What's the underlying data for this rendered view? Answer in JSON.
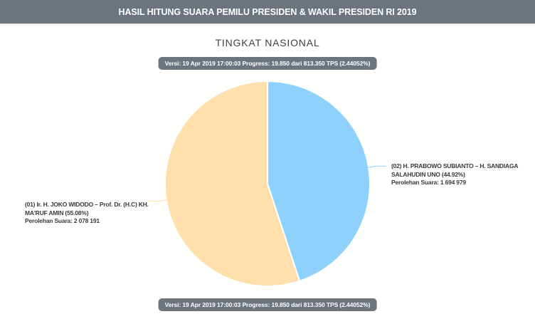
{
  "header": {
    "title": "HASIL HITUNG SUARA PEMILU PRESIDEN & WAKIL PRESIDEN RI 2019"
  },
  "page": {
    "subtitle": "TINGKAT NASIONAL",
    "version_badge": "Versi: 19 Apr 2019 17:00:03 Progress: 19.850 dari 813.350 TPS (2.44052%)"
  },
  "chart_data": {
    "type": "pie",
    "title": "TINGKAT NASIONAL",
    "legend_position": "none",
    "layout": {
      "start_angle_deg": 161.712,
      "direction": "clockwise",
      "label_style": "outside-callout"
    },
    "slices": [
      {
        "id": "01",
        "candidate": "Ir. H. JOKO WIDODO – Prof. Dr. (H.C) KH. MA'RUF AMIN",
        "percent": 55.08,
        "votes": 2078191,
        "votes_display": "2 078 191",
        "color": "#FFE0AC"
      },
      {
        "id": "02",
        "candidate": "H. PRABOWO SUBIANTO – H. SANDIAGA SALAHUDIN UNO",
        "percent": 44.92,
        "votes": 1694979,
        "votes_display": "1 694 979",
        "color": "#8ED1FC"
      }
    ]
  },
  "callouts": {
    "left": {
      "line1": "(01) Ir. H. JOKO WIDODO – Prof. Dr. (H.C) KH.",
      "line2": "MA'RUF AMIN (55.08%)",
      "line3": "Perolehan Suara: 2 078 191"
    },
    "right": {
      "line1": "(02) H. PRABOWO SUBIANTO – H. SANDIAGA",
      "line2": "SALAHUDIN UNO (44.92%)",
      "line3": "Perolehan Suara: 1 694 979"
    }
  },
  "colors": {
    "header_bg": "#6C757D",
    "badge_bg": "#6C757D",
    "slice_01": "#FFE0AC",
    "slice_02": "#8ED1FC",
    "text_dark": "#3A3A3A",
    "text_on_dark": "#FFFFFF"
  }
}
